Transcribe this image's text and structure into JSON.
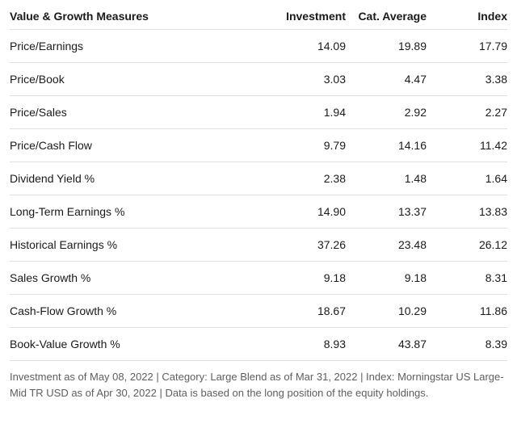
{
  "headers": {
    "measure": "Value & Growth Measures",
    "investment": "Investment",
    "catAverage": "Cat. Average",
    "index": "Index"
  },
  "rows": [
    {
      "measure": "Price/Earnings",
      "investment": "14.09",
      "catAverage": "19.89",
      "index": "17.79"
    },
    {
      "measure": "Price/Book",
      "investment": "3.03",
      "catAverage": "4.47",
      "index": "3.38"
    },
    {
      "measure": "Price/Sales",
      "investment": "1.94",
      "catAverage": "2.92",
      "index": "2.27"
    },
    {
      "measure": "Price/Cash Flow",
      "investment": "9.79",
      "catAverage": "14.16",
      "index": "11.42"
    },
    {
      "measure": "Dividend Yield %",
      "investment": "2.38",
      "catAverage": "1.48",
      "index": "1.64"
    },
    {
      "measure": "Long-Term Earnings %",
      "investment": "14.90",
      "catAverage": "13.37",
      "index": "13.83"
    },
    {
      "measure": "Historical Earnings %",
      "investment": "37.26",
      "catAverage": "23.48",
      "index": "26.12"
    },
    {
      "measure": "Sales Growth %",
      "investment": "9.18",
      "catAverage": "9.18",
      "index": "8.31"
    },
    {
      "measure": "Cash-Flow Growth %",
      "investment": "18.67",
      "catAverage": "10.29",
      "index": "11.86"
    },
    {
      "measure": "Book-Value Growth %",
      "investment": "8.93",
      "catAverage": "43.87",
      "index": "8.39"
    }
  ],
  "footnote": "Investment as of May 08, 2022 | Category: Large Blend as of Mar 31, 2022 | Index: Morningstar US Large-Mid TR USD as of Apr 30, 2022 | Data is based on the long position of the equity holdings.",
  "style": {
    "textColor": "#1a1a1a",
    "borderColor": "#e0e0e0",
    "footnoteColor": "#5e5e5e",
    "backgroundColor": "#ffffff",
    "fontSize": 14,
    "footnoteFontSize": 13
  }
}
